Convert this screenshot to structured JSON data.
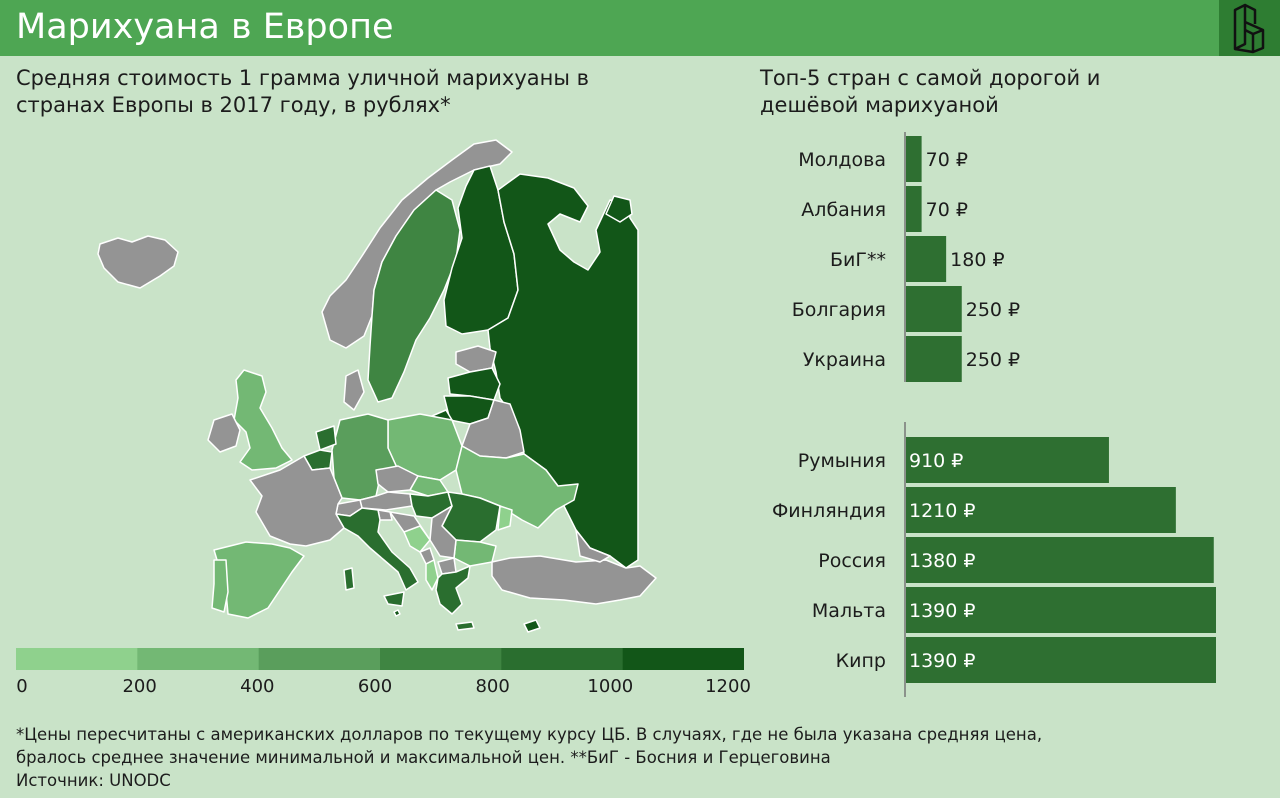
{
  "header": {
    "title": "Марихуана в Европе",
    "logo_icon": "brand-logo-icon"
  },
  "map": {
    "subtitle_line1": "Средняя стоимость 1 грамма уличной марихуаны в",
    "subtitle_line2": "странах Европы в 2017 году, в рублях*",
    "no_data_color": "#949494",
    "legend": {
      "ticks": [
        "0",
        "200",
        "400",
        "600",
        "800",
        "1000",
        "1200"
      ],
      "colors": [
        "#8fd18d",
        "#73b874",
        "#5a9e5c",
        "#3f8542",
        "#2a6e2f",
        "#125618"
      ]
    }
  },
  "bars": {
    "subtitle_line1": "Топ-5 стран с самой дорогой и",
    "subtitle_line2": "дешёвой марихуаной",
    "bar_color": "#2e6f31"
  },
  "chart_data": {
    "type": "bar",
    "orientation": "horizontal",
    "title": "Топ-5 стран с самой дорогой и дешёвой марихуаной",
    "unit": "₽",
    "groups": [
      {
        "categories": [
          "Молдова",
          "Албания",
          "БиГ**",
          "Болгария",
          "Украина"
        ],
        "values": [
          70,
          70,
          180,
          250,
          250
        ],
        "labels": [
          "70 ₽",
          "70 ₽",
          "180 ₽",
          "250 ₽",
          "250 ₽"
        ]
      },
      {
        "categories": [
          "Румыния",
          "Финляндия",
          "Россия",
          "Мальта",
          "Кипр"
        ],
        "values": [
          910,
          1210,
          1380,
          1390,
          1390
        ],
        "labels": [
          "910 ₽",
          "1210 ₽",
          "1380 ₽",
          "1390 ₽",
          "1390 ₽"
        ]
      }
    ]
  },
  "footnote": {
    "line1": "*Цены пересчитаны с американских долларов по текущему курсу ЦБ. В случаях, где не была указана средняя цена,",
    "line2": "бралось среднее значение минимальной и максимальной цен. **БиГ - Босния и Герцеговина",
    "source": "Источник: UNODC"
  }
}
